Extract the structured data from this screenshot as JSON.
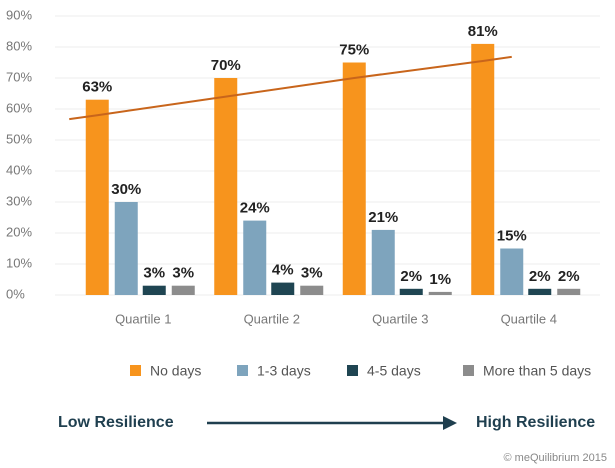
{
  "chart_data": {
    "type": "bar",
    "categories": [
      "Quartile 1",
      "Quartile 2",
      "Quartile 3",
      "Quartile 4"
    ],
    "series": [
      {
        "name": "No days",
        "color": "#f7941d",
        "values": [
          63,
          70,
          75,
          81
        ],
        "value_labels": [
          "63%",
          "70%",
          "75%",
          "81%"
        ]
      },
      {
        "name": "1-3 days",
        "color": "#7ea4bd",
        "values": [
          30,
          24,
          21,
          15
        ],
        "value_labels": [
          "30%",
          "24%",
          "21%",
          "15%"
        ]
      },
      {
        "name": "4-5 days",
        "color": "#1f4552",
        "values": [
          3,
          4,
          2,
          2
        ],
        "value_labels": [
          "3%",
          "4%",
          "2%",
          "2%"
        ]
      },
      {
        "name": "More than 5 days",
        "color": "#8c8c8c",
        "values": [
          3,
          3,
          1,
          2
        ],
        "value_labels": [
          "3%",
          "3%",
          "1%",
          "2%"
        ]
      }
    ],
    "trendline": {
      "color": "#c8651b",
      "values": [
        58,
        64,
        70,
        75.5
      ]
    },
    "ylim": [
      0,
      90
    ],
    "yticks": [
      {
        "value": 0,
        "label": "0%"
      },
      {
        "value": 10,
        "label": "10%"
      },
      {
        "value": 20,
        "label": "20%"
      },
      {
        "value": 30,
        "label": "30%"
      },
      {
        "value": 40,
        "label": "40%"
      },
      {
        "value": 50,
        "label": "50%"
      },
      {
        "value": 60,
        "label": "60%"
      },
      {
        "value": 70,
        "label": "70%"
      },
      {
        "value": 80,
        "label": "80%"
      },
      {
        "value": 90,
        "label": "90%"
      }
    ],
    "grid": true,
    "legend": "bottom",
    "annotations": {
      "left": "Low Resilience",
      "right": "High Resilience"
    },
    "footer": "© meQuilibrium 2015"
  }
}
